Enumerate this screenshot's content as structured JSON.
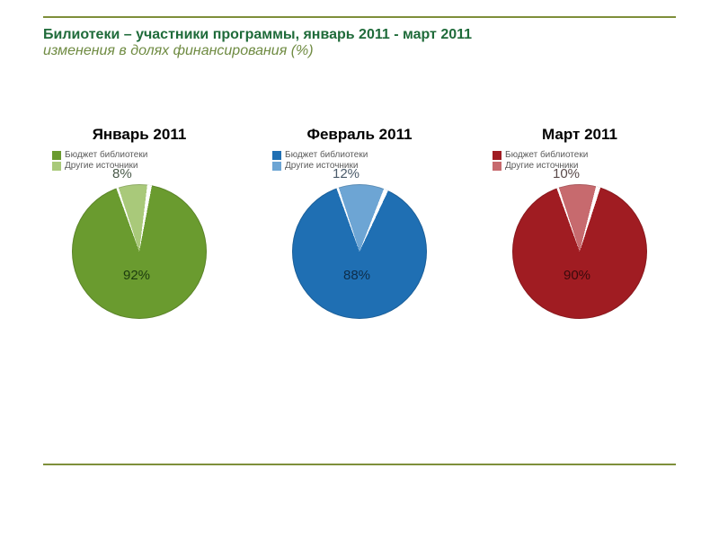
{
  "header": {
    "line1": {
      "text": "Билиотеки – участники программы, январь 2011 - март 2011",
      "color": "#1f6b3a",
      "fontsize": 16,
      "weight": "bold"
    },
    "line2": {
      "text": "изменения в долях финансирования (%)",
      "color": "#6f8b42",
      "fontsize": 16,
      "style": "italic"
    }
  },
  "legend_items": [
    {
      "label": "Бюджет библиотеки"
    },
    {
      "label": "Другие источники"
    }
  ],
  "legend_fontsize": 10,
  "chart_title_fontsize": 17,
  "pie_diameter": 150,
  "label_fontsize": 15,
  "slice_separator_color": "#ffffff",
  "background_color": "#ffffff",
  "rule_color": "#7e8f3a",
  "charts": [
    {
      "title": "Январь 2011",
      "type": "pie",
      "start_angle_deg": -20,
      "slices": [
        {
          "label": "92%",
          "value": 92,
          "color": "#6a9b2f",
          "label_color": "#1c3b0e",
          "label_pos": "inside"
        },
        {
          "label": "8%",
          "value": 8,
          "color": "#a9c97a",
          "label_color": "#4a5a4a",
          "label_pos": "outside"
        }
      ]
    },
    {
      "title": "Февраль 2011",
      "type": "pie",
      "start_angle_deg": -20,
      "slices": [
        {
          "label": "88%",
          "value": 88,
          "color": "#1f6fb3",
          "label_color": "#0d2d4a",
          "label_pos": "inside"
        },
        {
          "label": "12%",
          "value": 12,
          "color": "#6da5d4",
          "label_color": "#4a5a6a",
          "label_pos": "outside"
        }
      ]
    },
    {
      "title": "Март 2011",
      "type": "pie",
      "start_angle_deg": -20,
      "slices": [
        {
          "label": "90%",
          "value": 90,
          "color": "#a01c22",
          "label_color": "#3a0a0c",
          "label_pos": "inside"
        },
        {
          "label": "10%",
          "value": 10,
          "color": "#c76a6e",
          "label_color": "#5a4a4a",
          "label_pos": "outside"
        }
      ]
    }
  ]
}
